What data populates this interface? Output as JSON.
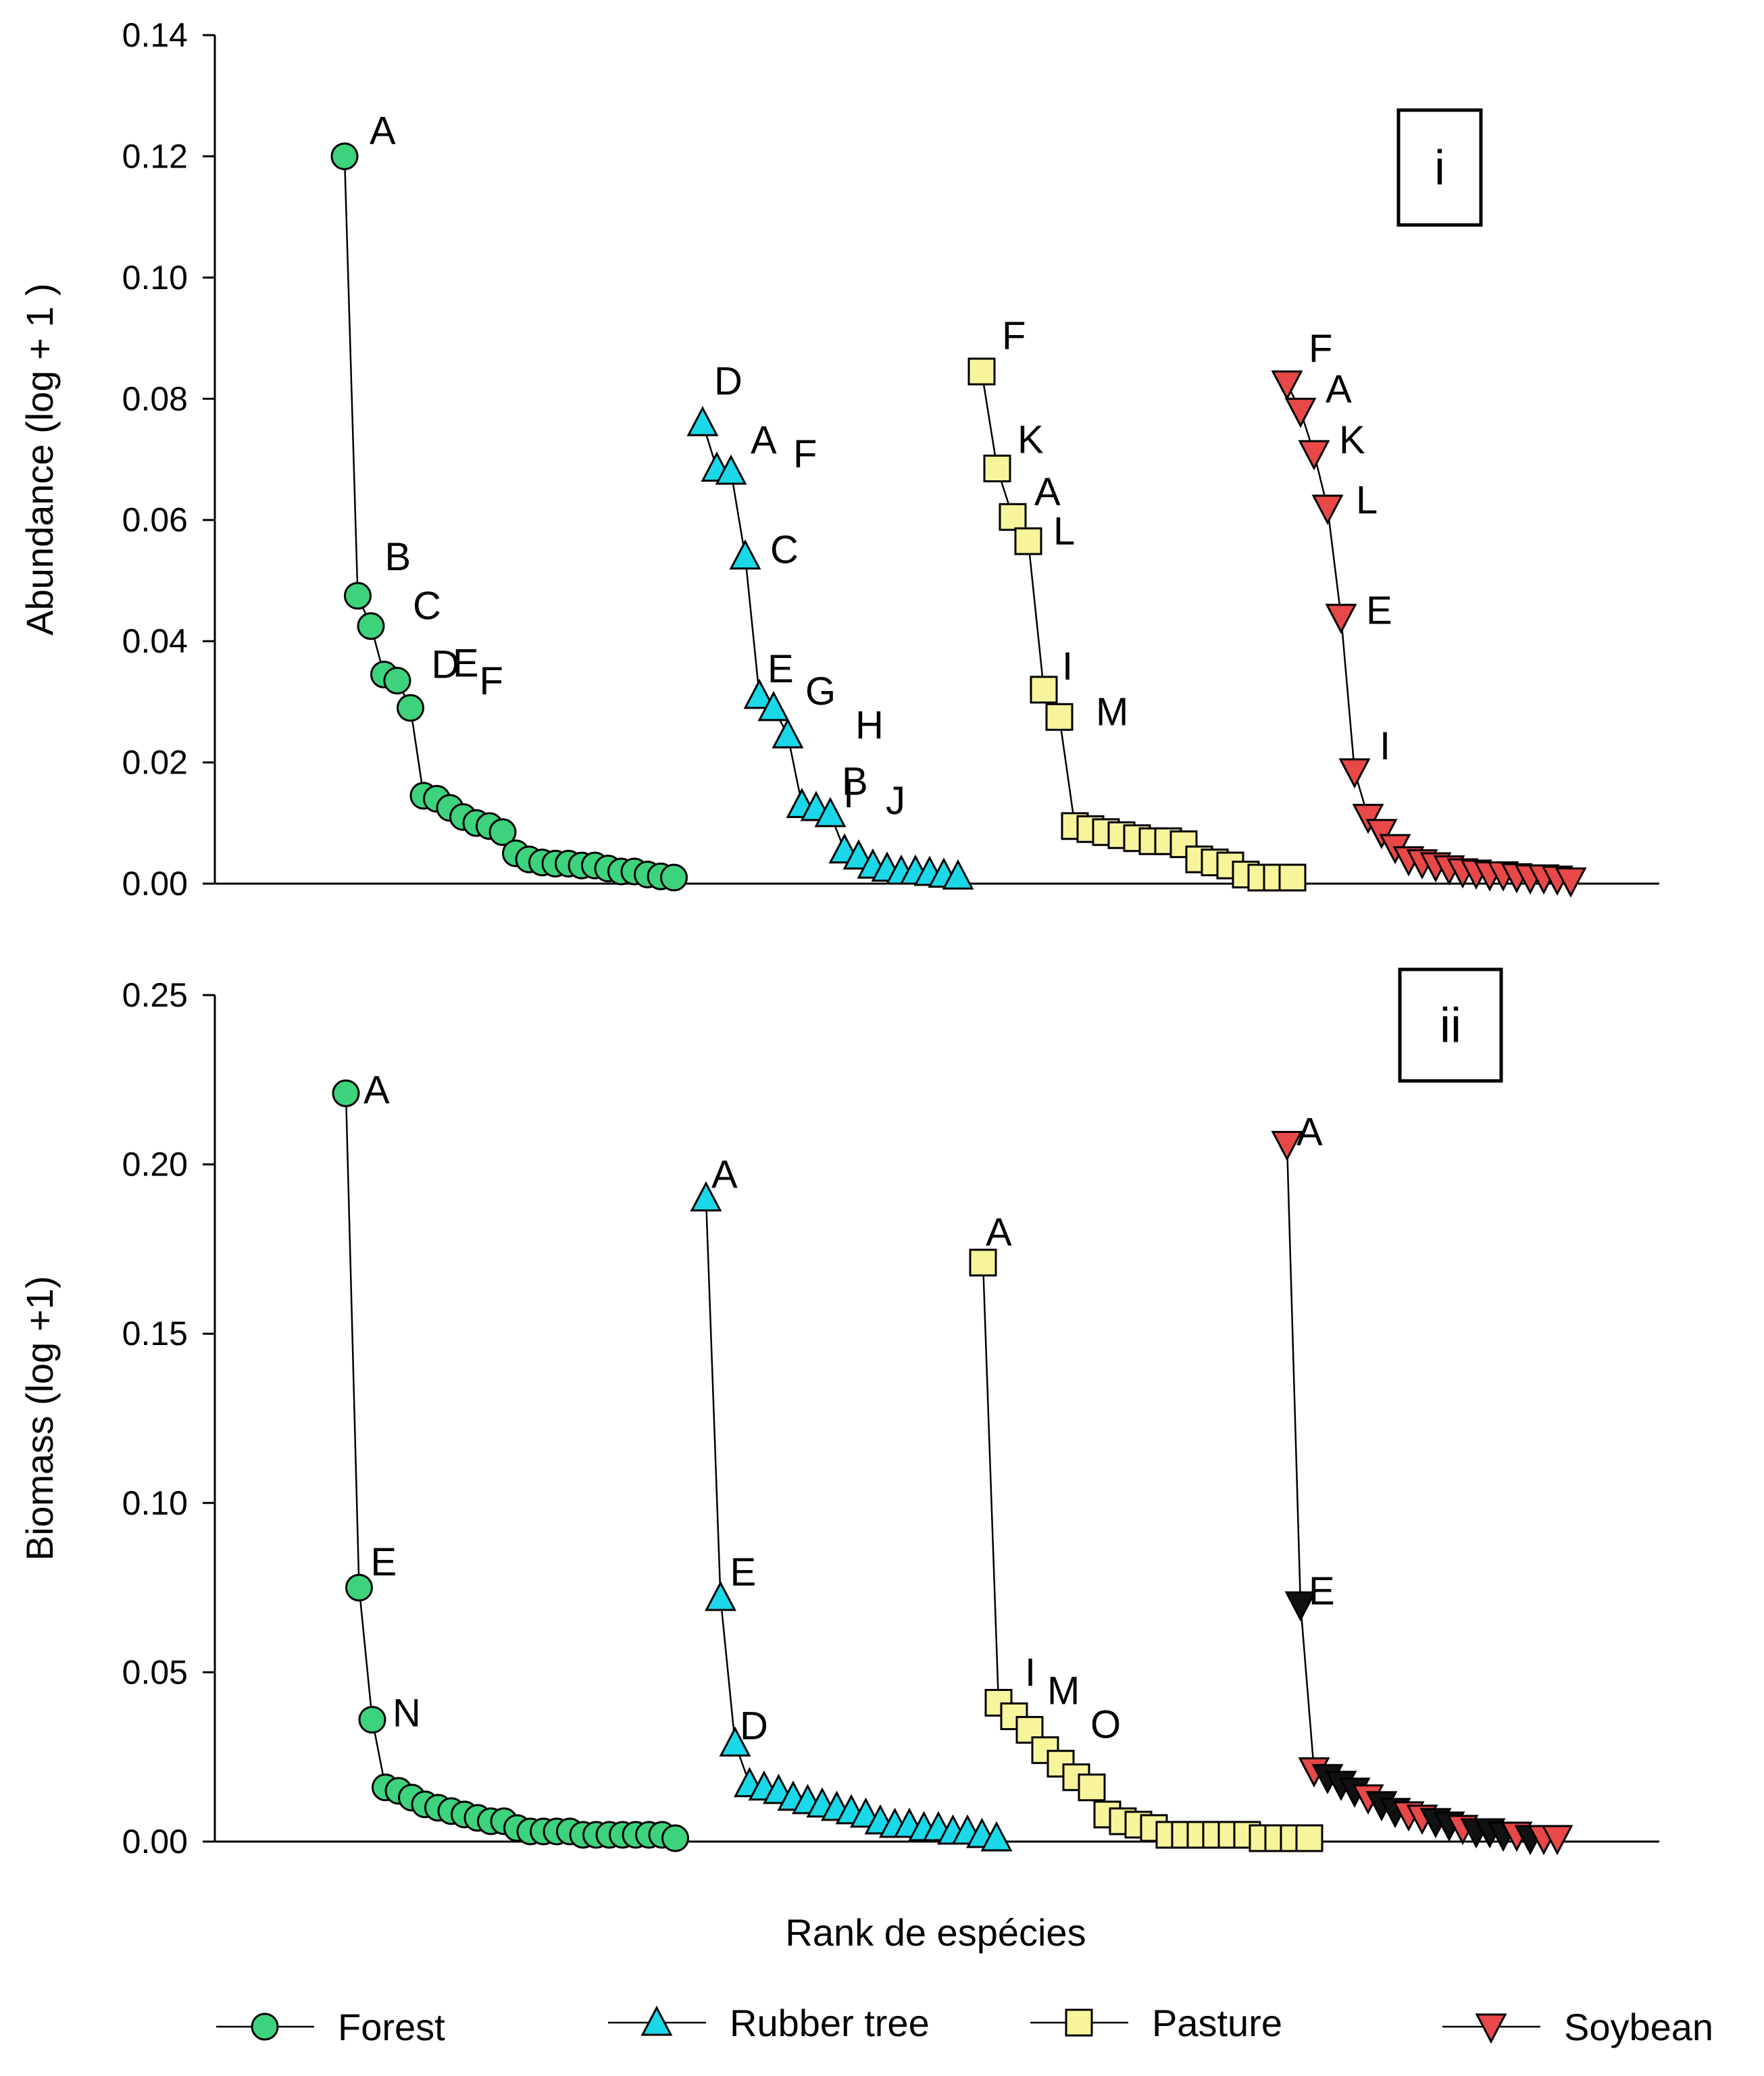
{
  "colors": {
    "Forest": "#3dd37d",
    "Rubber tree": "#1ad8e8",
    "Pasture": "#f8f49c",
    "Soybean": "#e84848",
    "Soybean_dark": "#111111"
  },
  "xlabel": "Rank de espécies",
  "legend": [
    {
      "name": "Forest",
      "marker": "circle"
    },
    {
      "name": "Rubber tree",
      "marker": "triangle-up"
    },
    {
      "name": "Pasture",
      "marker": "square"
    },
    {
      "name": "Soybean",
      "marker": "triangle-down"
    }
  ],
  "chart_data": [
    {
      "type": "line",
      "panel": "i",
      "ylabel": "Abundance (log + 1 )",
      "ylim": [
        0,
        0.14
      ],
      "yticks": [
        "0.00",
        "0.02",
        "0.04",
        "0.06",
        "0.08",
        "0.10",
        "0.12",
        "0.14"
      ],
      "grid": false,
      "series": [
        {
          "name": "Forest",
          "marker": "circle",
          "values": [
            0.12,
            0.0475,
            0.0425,
            0.0345,
            0.0335,
            0.029,
            0.0145,
            0.014,
            0.0125,
            0.011,
            0.01,
            0.0095,
            0.0085,
            0.005,
            0.004,
            0.0035,
            0.0033,
            0.0033,
            0.003,
            0.003,
            0.0025,
            0.002,
            0.002,
            0.0015,
            0.0012,
            0.001
          ],
          "labels": {
            "0": "A",
            "1": "B",
            "2": "C",
            "3": "D",
            "4": "E",
            "5": "F"
          }
        },
        {
          "name": "Rubber tree",
          "marker": "triangle-up",
          "values": [
            0.076,
            0.0685,
            0.068,
            0.054,
            0.031,
            0.029,
            0.0245,
            0.013,
            0.0125,
            0.0115,
            0.0055,
            0.0045,
            0.003,
            0.0025,
            0.002,
            0.002,
            0.0018,
            0.0015,
            0.0012
          ],
          "labels": {
            "0": "D",
            "1": "A",
            "2": "F",
            "3": "C",
            "4": "E",
            "5": "G",
            "6": "H",
            "7": "B",
            "8": "I",
            "9": "J"
          }
        },
        {
          "name": "Pasture",
          "marker": "square",
          "values": [
            0.0845,
            0.0685,
            0.0605,
            0.0565,
            0.032,
            0.0275,
            0.0095,
            0.009,
            0.0085,
            0.008,
            0.0075,
            0.007,
            0.007,
            0.0065,
            0.004,
            0.0035,
            0.003,
            0.0015,
            0.001,
            0.001,
            0.001
          ],
          "labels": {
            "0": "F",
            "1": "K",
            "2": "A",
            "3": "L",
            "4": "I",
            "5": "M"
          }
        },
        {
          "name": "Soybean",
          "marker": "triangle-down",
          "values": [
            0.0825,
            0.078,
            0.071,
            0.062,
            0.044,
            0.0185,
            0.011,
            0.0085,
            0.006,
            0.004,
            0.0035,
            0.003,
            0.0025,
            0.002,
            0.0018,
            0.0015,
            0.0015,
            0.0012,
            0.001,
            0.001,
            0.0008,
            0.0005
          ],
          "labels": {
            "0": "F",
            "1": "A",
            "2": "K",
            "3": "L",
            "4": "E",
            "5": "I"
          }
        }
      ]
    },
    {
      "type": "line",
      "panel": "ii",
      "ylabel": "Biomass (log +1)",
      "ylim": [
        0,
        0.25
      ],
      "yticks": [
        "0.00",
        "0.05",
        "0.10",
        "0.15",
        "0.20",
        "0.25"
      ],
      "grid": false,
      "series": [
        {
          "name": "Forest",
          "marker": "circle",
          "values": [
            0.221,
            0.075,
            0.036,
            0.016,
            0.015,
            0.013,
            0.011,
            0.01,
            0.009,
            0.008,
            0.007,
            0.006,
            0.006,
            0.004,
            0.003,
            0.003,
            0.003,
            0.003,
            0.002,
            0.002,
            0.002,
            0.002,
            0.002,
            0.002,
            0.002,
            0.001
          ],
          "labels": {
            "0": "A",
            "1": "E",
            "2": "N"
          }
        },
        {
          "name": "Rubber tree",
          "marker": "triangle-up",
          "values": [
            0.19,
            0.072,
            0.029,
            0.017,
            0.016,
            0.015,
            0.013,
            0.012,
            0.011,
            0.01,
            0.009,
            0.008,
            0.006,
            0.005,
            0.005,
            0.004,
            0.004,
            0.003,
            0.003,
            0.002,
            0.001
          ],
          "labels": {
            "0": "A",
            "1": "E",
            "2": "D"
          }
        },
        {
          "name": "Pasture",
          "marker": "square",
          "values": [
            0.171,
            0.041,
            0.037,
            0.033,
            0.027,
            0.023,
            0.019,
            0.016,
            0.008,
            0.006,
            0.005,
            0.004,
            0.002,
            0.002,
            0.002,
            0.002,
            0.002,
            0.002,
            0.001,
            0.001,
            0.001,
            0.001
          ],
          "labels": {
            "0": "A",
            "1": "I",
            "2": "M",
            "3": "O"
          }
        },
        {
          "name": "Soybean",
          "marker": "triangle-down",
          "values": [
            0.206,
            0.07,
            0.021,
            0.019,
            0.017,
            0.015,
            0.013,
            0.011,
            0.009,
            0.008,
            0.007,
            0.006,
            0.005,
            0.004,
            0.003,
            0.003,
            0.002,
            0.002,
            0.001,
            0.001,
            0.001
          ],
          "dark_points": [
            1,
            3,
            4,
            5,
            7,
            8,
            11,
            12,
            14,
            15,
            16,
            18
          ],
          "labels": {
            "0": "A",
            "1": "E"
          }
        }
      ]
    }
  ]
}
